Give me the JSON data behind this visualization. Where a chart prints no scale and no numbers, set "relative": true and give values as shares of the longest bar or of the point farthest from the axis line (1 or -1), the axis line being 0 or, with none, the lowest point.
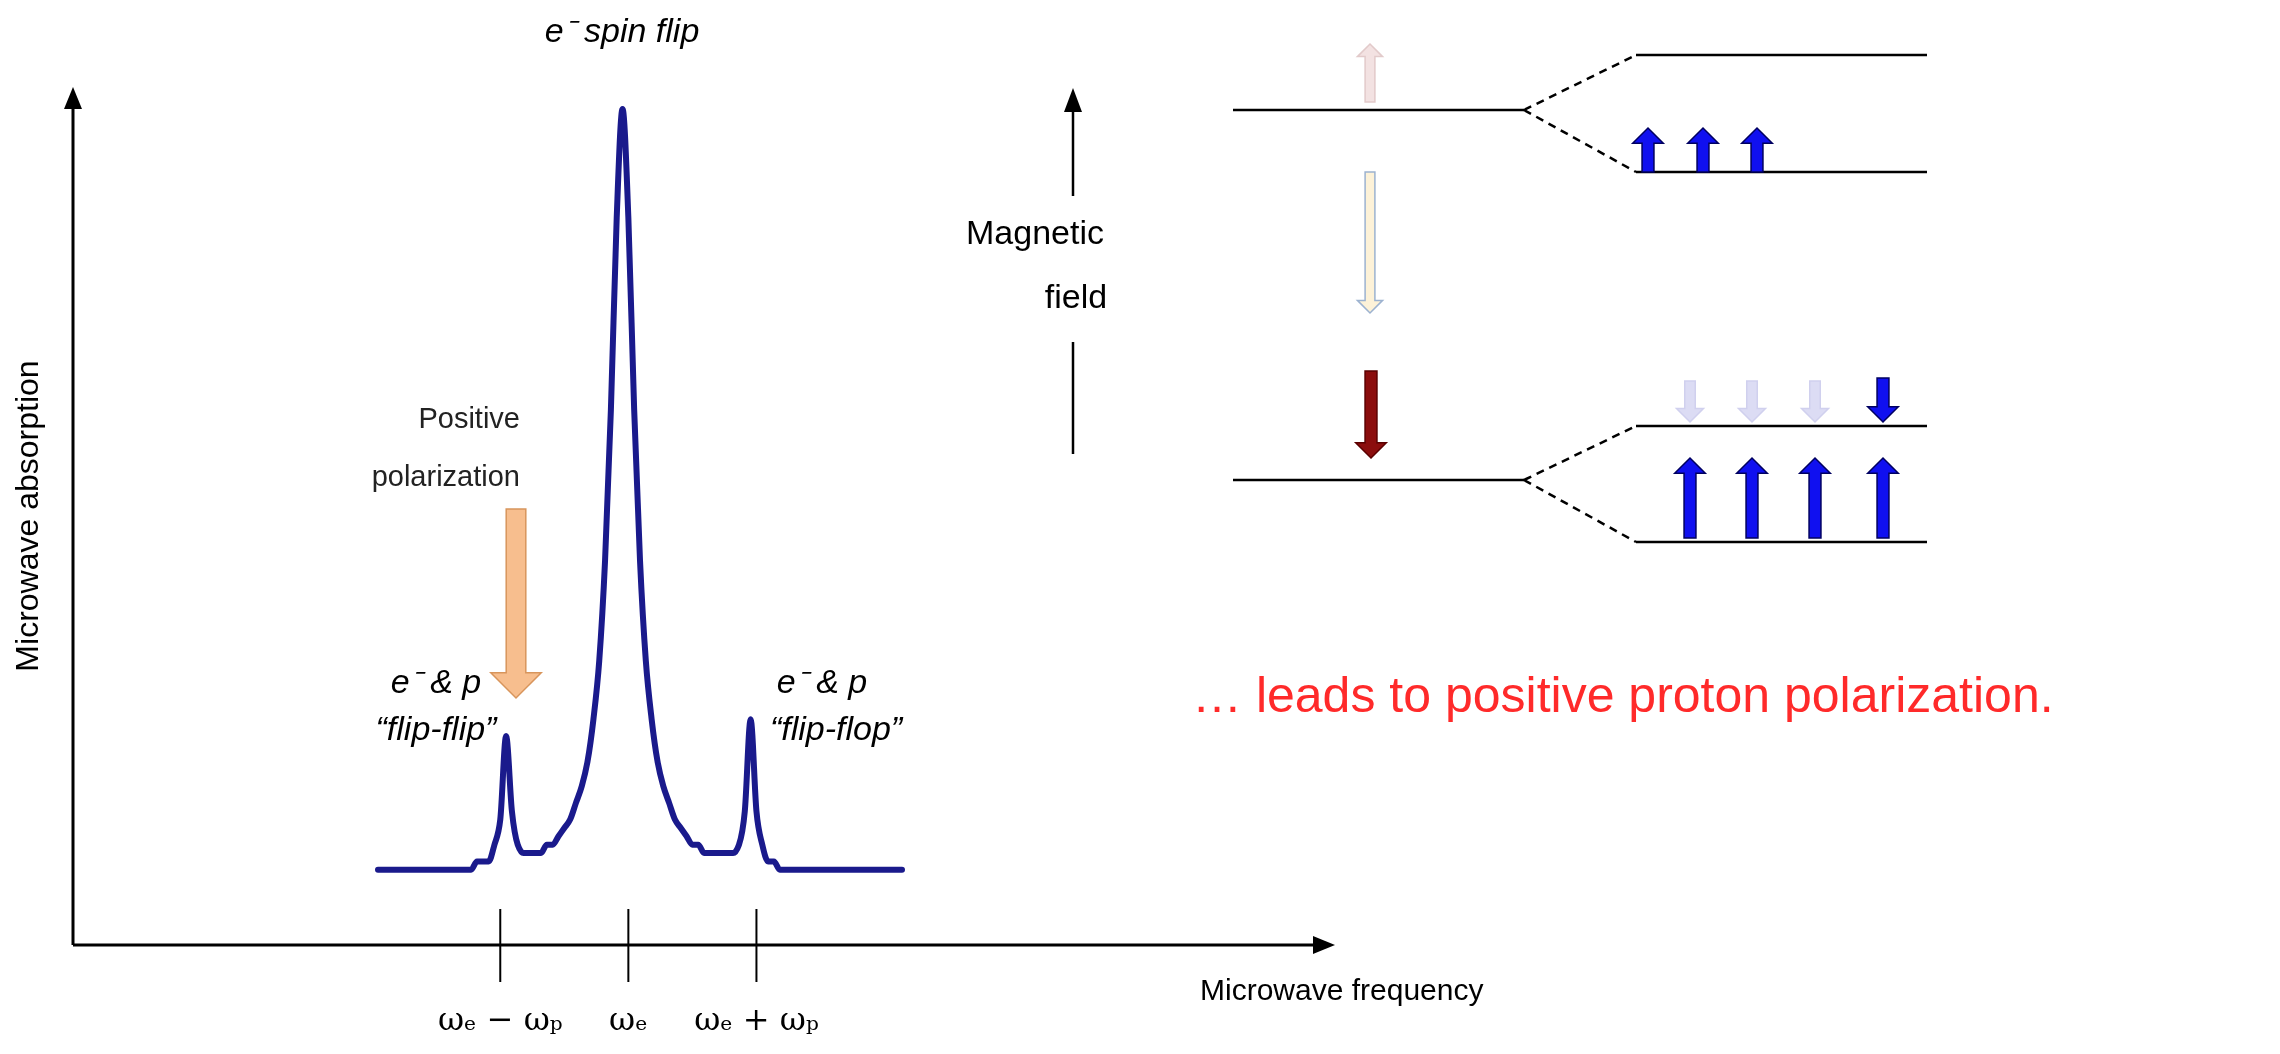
{
  "chart_data": {
    "type": "line",
    "relative": true,
    "tick_labels": "x",
    "color": "#1a1a8c",
    "categories": [
      null,
      null,
      null,
      null,
      null,
      null,
      null,
      null,
      null,
      null,
      null,
      null,
      null,
      null,
      null,
      null,
      null,
      null,
      null,
      null,
      null,
      "ωₑ − ωₚ",
      null,
      null,
      null,
      null,
      null,
      null,
      null,
      null,
      null,
      null,
      null,
      null,
      null,
      null,
      null,
      null,
      null,
      null,
      null,
      null,
      null,
      "ωₑ",
      null,
      null,
      null,
      null,
      null,
      null,
      null,
      null,
      null,
      null,
      null,
      null,
      null,
      null,
      null,
      null,
      null,
      null,
      null,
      null,
      null,
      "ωₑ + ωₚ",
      null,
      null,
      null,
      null,
      null,
      null,
      null,
      null,
      null,
      null,
      null,
      null,
      null,
      null,
      null,
      null,
      null,
      null,
      null,
      null,
      null,
      null,
      null,
      null,
      null
    ],
    "values": [
      0.09,
      0.09,
      0.09,
      0.09,
      0.09,
      0.09,
      0.09,
      0.09,
      0.09,
      0.09,
      0.09,
      0.09,
      0.09,
      0.09,
      0.09,
      0.09,
      0.09,
      0.1,
      0.1,
      0.1,
      0.12,
      0.15,
      0.25,
      0.16,
      0.12,
      0.11,
      0.11,
      0.11,
      0.11,
      0.12,
      0.12,
      0.13,
      0.14,
      0.15,
      0.17,
      0.19,
      0.22,
      0.27,
      0.34,
      0.46,
      0.64,
      0.87,
      1,
      0.87,
      0.64,
      0.46,
      0.34,
      0.27,
      0.22,
      0.19,
      0.17,
      0.15,
      0.14,
      0.13,
      0.12,
      0.12,
      0.11,
      0.11,
      0.11,
      0.11,
      0.11,
      0.11,
      0.12,
      0.16,
      0.27,
      0.16,
      0.12,
      0.1,
      0.1,
      0.09,
      0.09,
      0.09,
      0.09,
      0.09,
      0.09,
      0.09,
      0.09,
      0.09,
      0.09,
      0.09,
      0.09,
      0.09,
      0.09,
      0.09,
      0.09,
      0.09,
      0.09,
      0.09,
      0.09,
      0.09,
      0.09
    ],
    "annotations": [
      "e⁻ spin flip",
      "e⁻ & p",
      "“flip-flip”",
      "e⁻ & p",
      "“flip-flop”",
      "Positive",
      "polarization",
      "Magnetic",
      "field",
      "… leads to positive proton polarization.",
      "Microwave frequency",
      "Microwave absorption"
    ]
  }
}
